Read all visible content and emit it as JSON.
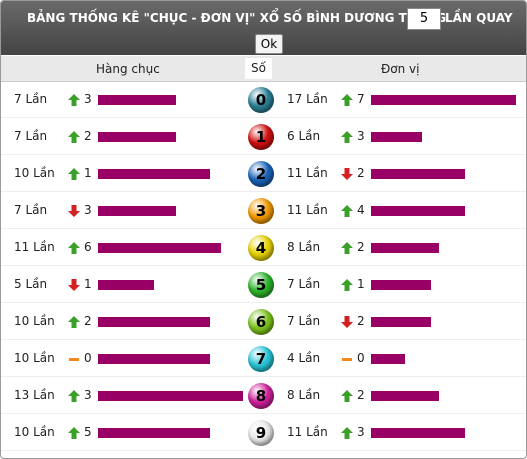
{
  "header": {
    "title": "BẢNG THỐNG KÊ \"CHỤC - ĐƠN VỊ\" XỔ SỐ BÌNH DƯƠNG TRONG",
    "draws": "5",
    "suffix": "LẦN QUAY",
    "button": "Ok"
  },
  "columns": {
    "tens": "Hàng chục",
    "digit": "Số",
    "units": "Đơn vị"
  },
  "bar_color": "#990066",
  "rows": [
    {
      "digit": "0",
      "ball_color": "#2a7f95",
      "tens": {
        "count": 7,
        "label": "7 Lần",
        "trend": "up",
        "change": 3
      },
      "units": {
        "count": 17,
        "label": "17 Lần",
        "trend": "up",
        "change": 7
      }
    },
    {
      "digit": "1",
      "ball_color": "#d01010",
      "tens": {
        "count": 7,
        "label": "7 Lần",
        "trend": "up",
        "change": 2
      },
      "units": {
        "count": 6,
        "label": "6 Lần",
        "trend": "up",
        "change": 3
      }
    },
    {
      "digit": "2",
      "ball_color": "#1a63b8",
      "tens": {
        "count": 10,
        "label": "10 Lần",
        "trend": "up",
        "change": 1
      },
      "units": {
        "count": 11,
        "label": "11 Lần",
        "trend": "down",
        "change": 2
      }
    },
    {
      "digit": "3",
      "ball_color": "#f29a00",
      "tens": {
        "count": 7,
        "label": "7 Lần",
        "trend": "down",
        "change": 3
      },
      "units": {
        "count": 11,
        "label": "11 Lần",
        "trend": "up",
        "change": 4
      }
    },
    {
      "digit": "4",
      "ball_color": "#e6d200",
      "tens": {
        "count": 11,
        "label": "11 Lần",
        "trend": "up",
        "change": 6
      },
      "units": {
        "count": 8,
        "label": "8 Lần",
        "trend": "up",
        "change": 2
      }
    },
    {
      "digit": "5",
      "ball_color": "#2cb52c",
      "tens": {
        "count": 5,
        "label": "5 Lần",
        "trend": "down",
        "change": 1
      },
      "units": {
        "count": 7,
        "label": "7 Lần",
        "trend": "up",
        "change": 1
      }
    },
    {
      "digit": "6",
      "ball_color": "#7cc21c",
      "tens": {
        "count": 10,
        "label": "10 Lần",
        "trend": "up",
        "change": 2
      },
      "units": {
        "count": 7,
        "label": "7 Lần",
        "trend": "down",
        "change": 2
      }
    },
    {
      "digit": "7",
      "ball_color": "#28c4d8",
      "tens": {
        "count": 10,
        "label": "10 Lần",
        "trend": "same",
        "change": 0
      },
      "units": {
        "count": 4,
        "label": "4 Lần",
        "trend": "same",
        "change": 0
      }
    },
    {
      "digit": "8",
      "ball_color": "#d0209a",
      "tens": {
        "count": 13,
        "label": "13 Lần",
        "trend": "up",
        "change": 3
      },
      "units": {
        "count": 8,
        "label": "8 Lần",
        "trend": "up",
        "change": 2
      }
    },
    {
      "digit": "9",
      "ball_color": "#e8e8e8",
      "tens": {
        "count": 10,
        "label": "10 Lần",
        "trend": "up",
        "change": 5
      },
      "units": {
        "count": 11,
        "label": "11 Lần",
        "trend": "up",
        "change": 3
      }
    }
  ]
}
